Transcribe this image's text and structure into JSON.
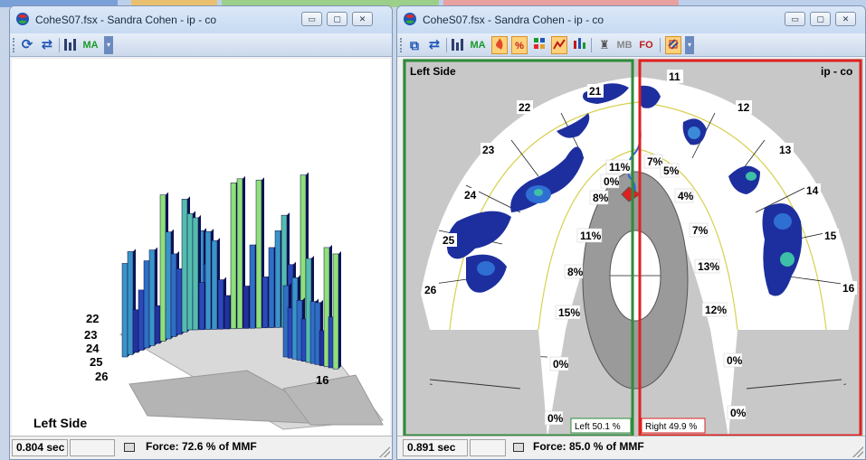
{
  "taskbar": {
    "segment_colors": [
      "#7aa0d8",
      "#e8c070",
      "#9ccf8a",
      "#e8a0a0"
    ]
  },
  "left_window": {
    "title": "CoheS07.fsx - Sandra  Cohen - ip - co",
    "toolbar": {
      "ma_label": "MA"
    },
    "chart": {
      "tooth_labels": [
        "22",
        "23",
        "24",
        "25",
        "26",
        "16"
      ],
      "side_label": "Left Side"
    },
    "status": {
      "time": "0.804 sec",
      "force": "Force: 72.6 % of MMF"
    }
  },
  "right_window": {
    "title": "CoheS07.fsx - Sandra  Cohen - ip - co",
    "toolbar": {
      "ma_label": "MA",
      "percent_label": "%",
      "mb_label": "MB",
      "fo_label": "FO"
    },
    "map": {
      "left_side_label": "Left Side",
      "right_header": "ip - co",
      "teeth_left": [
        "21",
        "22",
        "23",
        "24",
        "25",
        "26"
      ],
      "teeth_right": [
        "11",
        "12",
        "13",
        "14",
        "15",
        "16"
      ],
      "pct_left": [
        "11%",
        "0%",
        "8%",
        "11%",
        "8%",
        "15%",
        "0%",
        "0%"
      ],
      "pct_right": [
        "7%",
        "5%",
        "4%",
        "7%",
        "13%",
        "12%",
        "0%",
        "0%"
      ],
      "left_total": "Left 50.1 %",
      "right_total": "Right 49.9 %",
      "left_box_color": "#2e8b3a",
      "right_box_color": "#e02020"
    },
    "status": {
      "time": "0.891 sec",
      "force": "Force: 85.0 % of MMF"
    }
  }
}
